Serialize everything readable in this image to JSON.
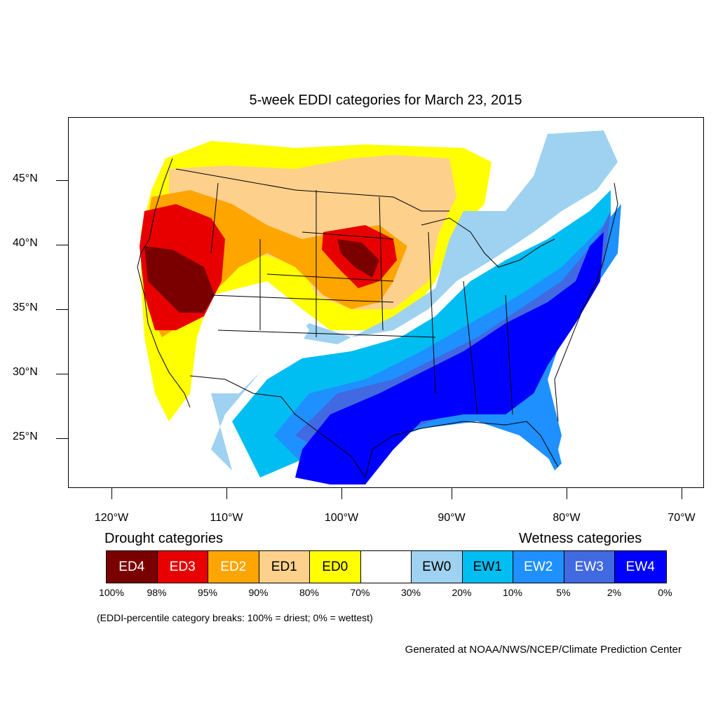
{
  "title": "5-week EDDI categories for March 23, 2015",
  "lat_labels": [
    "45°N",
    "40°N",
    "35°N",
    "30°N",
    "25°N"
  ],
  "lon_labels": [
    "120°W",
    "110°W",
    "100°W",
    "90°W",
    "80°W",
    "70°W"
  ],
  "legend": {
    "drought_heading": "Drought categories",
    "wetness_heading": "Wetness categories",
    "categories": [
      {
        "label": "ED4",
        "color": "#7a0000",
        "text_color": "#ffffff"
      },
      {
        "label": "ED3",
        "color": "#e80000",
        "text_color": "#ffffff"
      },
      {
        "label": "ED2",
        "color": "#ffa500",
        "text_color": "#ffffff"
      },
      {
        "label": "ED1",
        "color": "#fdd08c",
        "text_color": "#000000"
      },
      {
        "label": "ED0",
        "color": "#ffff00",
        "text_color": "#000000"
      },
      {
        "label": "",
        "color": "#ffffff",
        "text_color": "#000000"
      },
      {
        "label": "EW0",
        "color": "#9ed2f0",
        "text_color": "#000000"
      },
      {
        "label": "EW1",
        "color": "#00bdf2",
        "text_color": "#000000"
      },
      {
        "label": "EW2",
        "color": "#1e90ff",
        "text_color": "#ffffff"
      },
      {
        "label": "EW3",
        "color": "#4169e1",
        "text_color": "#ffffff"
      },
      {
        "label": "EW4",
        "color": "#0000ff",
        "text_color": "#ffffff"
      }
    ],
    "breaks": [
      "100%",
      "98%",
      "95%",
      "90%",
      "80%",
      "70%",
      "30%",
      "20%",
      "10%",
      "5%",
      "2%",
      "0%"
    ]
  },
  "note": "(EDDI-percentile category breaks: 100% = driest; 0% = wettest)",
  "credit": "Generated at NOAA/NWS/NCEP/Climate Prediction Center"
}
